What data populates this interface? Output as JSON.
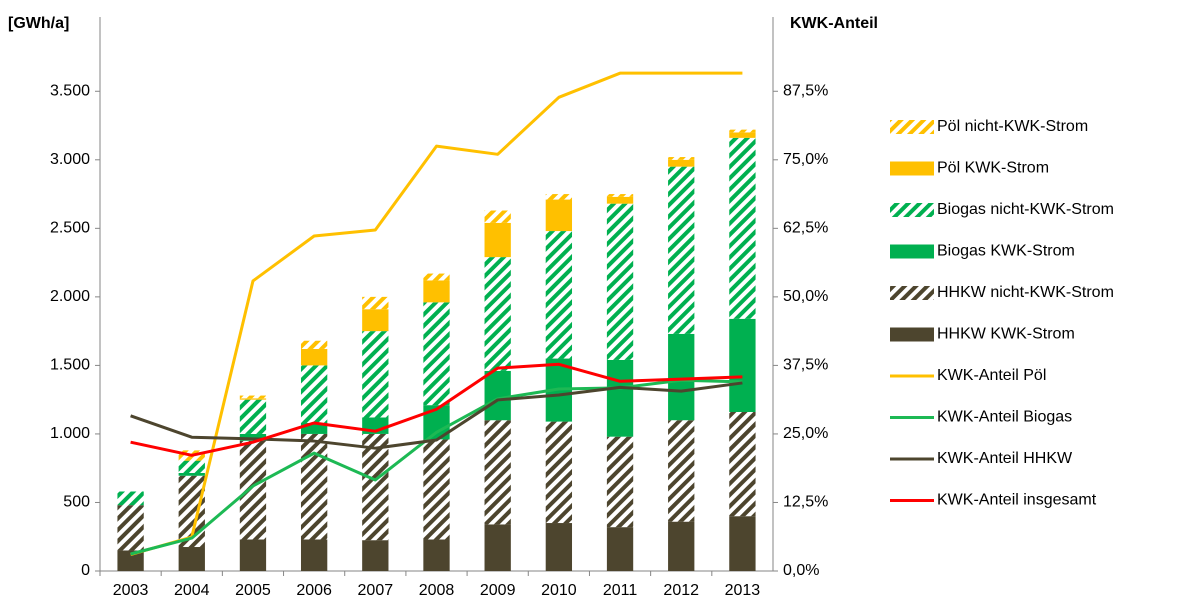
{
  "chart_data": {
    "type": "bar",
    "y_label": "[GWh/a]",
    "y2_label": "KWK-Anteil",
    "categories": [
      "2003",
      "2004",
      "2005",
      "2006",
      "2007",
      "2008",
      "2009",
      "2010",
      "2011",
      "2012",
      "2013"
    ],
    "ylim": [
      0,
      3750
    ],
    "yticks": [
      0,
      500,
      {
        "value": 1000,
        "label": "1.000"
      },
      {
        "value": 1500,
        "label": "1.500"
      },
      {
        "value": 2000,
        "label": "2.000"
      },
      {
        "value": 2500,
        "label": "2.500"
      },
      {
        "value": 3000,
        "label": "3.000"
      },
      {
        "value": 3500,
        "label": "3.500"
      }
    ],
    "y2lim": [
      0,
      93.75
    ],
    "y2ticks": [
      {
        "value": 0,
        "label": "0,0%"
      },
      {
        "value": 12.5,
        "label": "12,5%"
      },
      {
        "value": 25,
        "label": "25,0%"
      },
      {
        "value": 37.5,
        "label": "37,5%"
      },
      {
        "value": 50,
        "label": "50,0%"
      },
      {
        "value": 62.5,
        "label": "62,5%"
      },
      {
        "value": 75,
        "label": "75,0%"
      },
      {
        "value": 87.5,
        "label": "87,5%"
      }
    ],
    "stacked": true,
    "series": [
      {
        "name": "HHKW KWK-Strom",
        "type": "bar",
        "color": "#4d452e",
        "hatched": false,
        "values": [
          150,
          175,
          230,
          230,
          225,
          230,
          340,
          350,
          320,
          360,
          400
        ]
      },
      {
        "name": "HHKW nicht-KWK-Strom",
        "type": "bar",
        "color": "#4d452e",
        "hatched": true,
        "values": [
          330,
          520,
          720,
          770,
          775,
          730,
          760,
          740,
          660,
          740,
          760
        ]
      },
      {
        "name": "Biogas KWK-Strom",
        "type": "bar",
        "color": "#00b050",
        "hatched": false,
        "values": [
          0,
          20,
          50,
          80,
          120,
          250,
          360,
          460,
          560,
          630,
          680
        ]
      },
      {
        "name": "Biogas nicht-KWK-Strom",
        "type": "bar",
        "color": "#00b050",
        "hatched": true,
        "values": [
          100,
          90,
          250,
          420,
          630,
          750,
          830,
          930,
          1140,
          1220,
          1320
        ]
      },
      {
        "name": "Pöl KWK-Strom",
        "type": "bar",
        "color": "#ffc000",
        "hatched": false,
        "values": [
          0,
          0,
          10,
          120,
          160,
          160,
          250,
          230,
          50,
          50,
          40
        ]
      },
      {
        "name": "Pöl nicht-KWK-Strom",
        "type": "bar",
        "color": "#ffc000",
        "hatched": true,
        "values": [
          0,
          75,
          20,
          60,
          90,
          50,
          90,
          40,
          20,
          20,
          20
        ]
      },
      {
        "name": "KWK-Anteil Pöl",
        "type": "line",
        "axis": "y2",
        "color": "#ffc000",
        "values": [
          3.0,
          6.2,
          52.9,
          61.1,
          62.2,
          77.5,
          76.0,
          86.4,
          90.8,
          90.8,
          90.8
        ]
      },
      {
        "name": "KWK-Anteil Biogas",
        "type": "line",
        "axis": "y2",
        "color": "#1db954",
        "values": [
          3.1,
          6.0,
          15.5,
          21.5,
          16.6,
          25.3,
          31.4,
          33.2,
          33.4,
          34.8,
          34.5
        ]
      },
      {
        "name": "KWK-Anteil HHKW",
        "type": "line",
        "axis": "y2",
        "color": "#4d452e",
        "values": [
          28.3,
          24.4,
          24.1,
          23.7,
          22.4,
          23.9,
          31.2,
          32.1,
          33.5,
          32.8,
          34.3
        ]
      },
      {
        "name": "KWK-Anteil insgesamt",
        "type": "line",
        "axis": "y2",
        "color": "#ff0000",
        "values": [
          23.5,
          21.1,
          23.5,
          27.0,
          25.5,
          29.5,
          37.0,
          37.7,
          34.6,
          35.0,
          35.4
        ]
      }
    ]
  }
}
